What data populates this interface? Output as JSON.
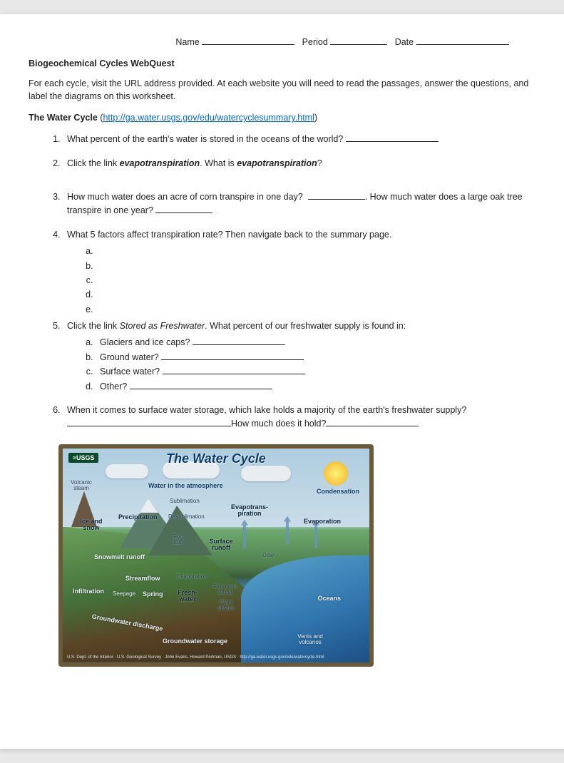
{
  "header": {
    "name_label": "Name",
    "period_label": "Period",
    "date_label": "Date"
  },
  "title": "Biogeochemical Cycles WebQuest",
  "intro": "For each cycle, visit the URL address provided.  At each website you will need to read the passages, answer the questions, and label the diagrams on this worksheet.",
  "section": {
    "heading": "The Water Cycle",
    "url_text": "http://ga.water.usgs.gov/edu/watercyclesummary.html"
  },
  "q1": "What percent of the earth's water is stored in the oceans of the world?",
  "q2_a": "Click the link ",
  "q2_b": "evapotranspiration",
  "q2_c": ".  What is ",
  "q2_d": "evapotranspiration",
  "q2_e": "?",
  "q3_a": "How much water does an acre of corn transpire in one day?",
  "q3_b": ".   How much water does a large oak tree transpire in one year?",
  "q4": "What 5 factors affect transpiration rate?  Then navigate back to the summary page.",
  "q4_items": {
    "a": "a.",
    "b": "b.",
    "c": "c.",
    "d": "d.",
    "e": "e."
  },
  "q5_a": "Click the link ",
  "q5_b": "Stored as Freshwater",
  "q5_c": ".  What percent of our freshwater supply is found in:",
  "q5_items": {
    "a": "Glaciers and ice caps?",
    "b": "Ground water?",
    "c": "Surface water?",
    "d": "Other?"
  },
  "q6_a": "When it comes to surface water storage, which lake holds a majority of the earth's freshwater supply?",
  "q6_b": "How much does it hold?",
  "diagram": {
    "badge": "≈USGS",
    "title": "The Water Cycle",
    "labels": {
      "volcanic": "Volcanic\nsteam",
      "water_atm": "Water in the atmosphere",
      "condensation": "Condensation",
      "ice_snow": "Ice and\nsnow",
      "precip": "Precipitation",
      "sublimation": "Sublimation",
      "desublimation": "Desublimation",
      "evapotrans": "Evapotrans-\npiration",
      "evaporation": "Evaporation",
      "fog": "Fog\ndrip",
      "snowmelt": "Snowmelt runoff",
      "surface_runoff": "Surface\nrunoff",
      "dew": "Dew",
      "streamflow": "Streamflow",
      "infiltration": "Infiltration",
      "seepage": "Seepage",
      "spring": "Spring",
      "freshwater": "Fresh-\nwater",
      "flora": "Flora and\nfauna",
      "plant": "Plant\nuptake",
      "gw_discharge": "Groundwater discharge",
      "gw_storage": "Groundwater storage",
      "oceans": "Oceans",
      "vents": "Vents and\nvolcanos"
    },
    "credit": "U.S. Dept. of the Interior · U.S. Geological Survey · John Evans, Howard Perlman, USGS · http://ga.water.usgs.gov/edu/watercycle.html"
  }
}
